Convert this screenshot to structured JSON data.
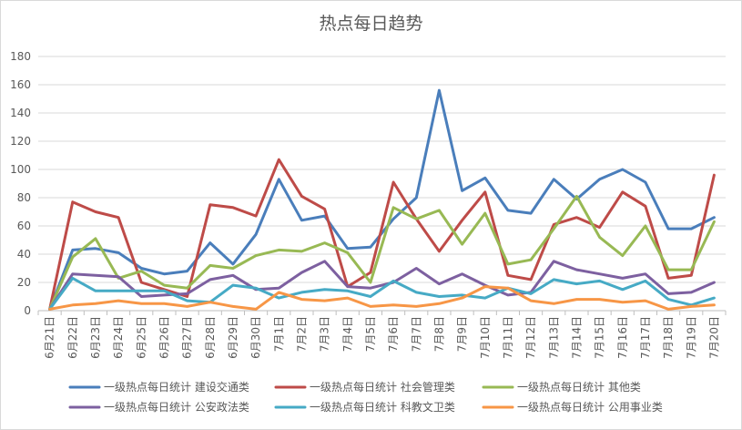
{
  "chart_data": {
    "type": "line",
    "title": "热点每日趋势",
    "xlabel": "",
    "ylabel": "",
    "ylim": [
      0,
      180
    ],
    "yticks": [
      0,
      20,
      40,
      60,
      80,
      100,
      120,
      140,
      160,
      180
    ],
    "grid": true,
    "legend_position": "bottom",
    "categories": [
      "6月21日",
      "6月22日",
      "6月23日",
      "6月24日",
      "6月25日",
      "6月26日",
      "6月27日",
      "6月28日",
      "6月29日",
      "6月30日",
      "7月1日",
      "7月2日",
      "7月3日",
      "7月4日",
      "7月5日",
      "7月6日",
      "7月7日",
      "7月8日",
      "7月9日",
      "7月10日",
      "7月11日",
      "7月12日",
      "7月13日",
      "7月14日",
      "7月15日",
      "7月16日",
      "7月17日",
      "7月18日",
      "7月19日",
      "7月20日"
    ],
    "series": [
      {
        "name": "一级热点每日统计 建设交通类",
        "color": "#4a7ebb",
        "values": [
          1,
          43,
          44,
          41,
          30,
          26,
          28,
          48,
          33,
          54,
          93,
          64,
          67,
          44,
          45,
          65,
          80,
          156,
          85,
          94,
          71,
          69,
          93,
          79,
          93,
          100,
          91,
          58,
          58,
          66
        ]
      },
      {
        "name": "一级热点每日统计 社会管理类",
        "color": "#be4b48",
        "values": [
          1,
          77,
          70,
          66,
          20,
          15,
          10,
          75,
          73,
          67,
          107,
          81,
          72,
          17,
          27,
          91,
          65,
          42,
          64,
          84,
          25,
          22,
          61,
          66,
          59,
          84,
          74,
          23,
          25,
          96
        ]
      },
      {
        "name": "一级热点每日统计 其他类",
        "color": "#98b954",
        "values": [
          1,
          38,
          51,
          23,
          28,
          18,
          16,
          32,
          30,
          39,
          43,
          42,
          48,
          41,
          20,
          73,
          65,
          71,
          47,
          69,
          33,
          36,
          58,
          81,
          52,
          39,
          60,
          29,
          29,
          63
        ]
      },
      {
        "name": "一级热点每日统计 公安政法类",
        "color": "#7d60a0",
        "values": [
          1,
          26,
          25,
          24,
          10,
          11,
          12,
          22,
          25,
          15,
          16,
          27,
          35,
          17,
          16,
          20,
          30,
          19,
          26,
          18,
          11,
          13,
          35,
          29,
          26,
          23,
          26,
          12,
          13,
          20
        ]
      },
      {
        "name": "一级热点每日统计 科教文卫类",
        "color": "#46aac5",
        "values": [
          1,
          23,
          14,
          14,
          14,
          14,
          7,
          6,
          18,
          16,
          9,
          13,
          15,
          14,
          10,
          21,
          13,
          10,
          11,
          9,
          16,
          12,
          22,
          19,
          21,
          15,
          21,
          8,
          4,
          9
        ]
      },
      {
        "name": "一级热点每日统计 公用事业类",
        "color": "#f79646",
        "values": [
          1,
          4,
          5,
          7,
          5,
          5,
          3,
          6,
          3,
          1,
          13,
          8,
          7,
          9,
          3,
          4,
          3,
          5,
          9,
          17,
          16,
          7,
          5,
          8,
          8,
          6,
          7,
          1,
          3,
          4
        ]
      }
    ]
  }
}
